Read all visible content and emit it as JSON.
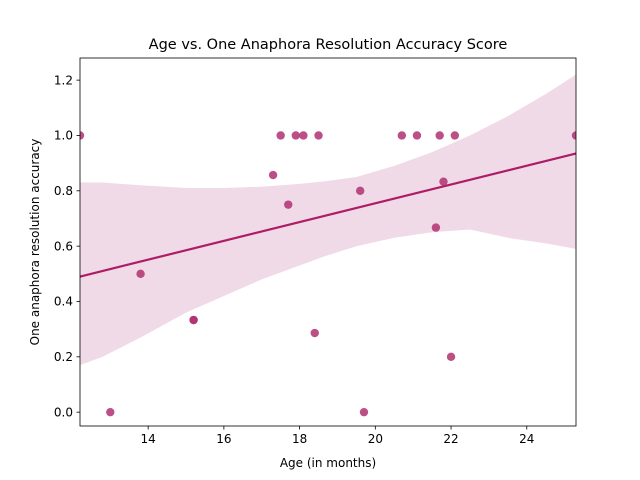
{
  "chart_data": {
    "type": "scatter",
    "title": "Age vs. One Anaphora Resolution Accuracy Score",
    "xlabel": "Age (in months)",
    "ylabel": "One anaphora resolution accuracy",
    "xlim": [
      12.2,
      25.3
    ],
    "ylim": [
      -0.05,
      1.28
    ],
    "xticks": [
      14,
      16,
      18,
      20,
      22,
      24
    ],
    "yticks": [
      0.0,
      0.2,
      0.4,
      0.6,
      0.8,
      1.0,
      1.2
    ],
    "xtick_labels": [
      "14",
      "16",
      "18",
      "20",
      "22",
      "24"
    ],
    "ytick_labels": [
      "0.0",
      "0.2",
      "0.4",
      "0.6",
      "0.8",
      "1.0",
      "1.2"
    ],
    "grid": false,
    "points": [
      {
        "x": 12.2,
        "y": 1.0
      },
      {
        "x": 13.0,
        "y": 0.0
      },
      {
        "x": 13.8,
        "y": 0.5
      },
      {
        "x": 15.2,
        "y": 0.333
      },
      {
        "x": 15.2,
        "y": 0.333
      },
      {
        "x": 17.3,
        "y": 0.857
      },
      {
        "x": 17.5,
        "y": 1.0
      },
      {
        "x": 17.7,
        "y": 0.75
      },
      {
        "x": 17.9,
        "y": 1.0
      },
      {
        "x": 18.1,
        "y": 1.0
      },
      {
        "x": 18.4,
        "y": 0.286
      },
      {
        "x": 18.5,
        "y": 1.0
      },
      {
        "x": 19.6,
        "y": 0.8
      },
      {
        "x": 19.7,
        "y": 0.0
      },
      {
        "x": 20.7,
        "y": 1.0
      },
      {
        "x": 21.1,
        "y": 1.0
      },
      {
        "x": 21.6,
        "y": 0.667
      },
      {
        "x": 21.7,
        "y": 1.0
      },
      {
        "x": 21.8,
        "y": 0.833
      },
      {
        "x": 22.0,
        "y": 0.2
      },
      {
        "x": 22.1,
        "y": 1.0
      },
      {
        "x": 25.3,
        "y": 1.0
      }
    ],
    "regression": {
      "x": [
        12.2,
        25.3
      ],
      "y": [
        0.49,
        0.935
      ]
    },
    "confidence_band": {
      "x": [
        12.2,
        12.8,
        13.8,
        15,
        16,
        17,
        18,
        18.7,
        19.5,
        20.5,
        21.5,
        22.5,
        23.5,
        24.5,
        25.3
      ],
      "upper": [
        0.83,
        0.83,
        0.82,
        0.81,
        0.81,
        0.815,
        0.825,
        0.835,
        0.85,
        0.89,
        0.94,
        1.0,
        1.07,
        1.15,
        1.22
      ],
      "lower": [
        0.17,
        0.2,
        0.27,
        0.36,
        0.42,
        0.48,
        0.53,
        0.565,
        0.6,
        0.63,
        0.65,
        0.66,
        0.63,
        0.61,
        0.59
      ]
    },
    "colors": {
      "point": "#b03070",
      "line": "#ad1d66",
      "band": "#f0dae7"
    }
  }
}
